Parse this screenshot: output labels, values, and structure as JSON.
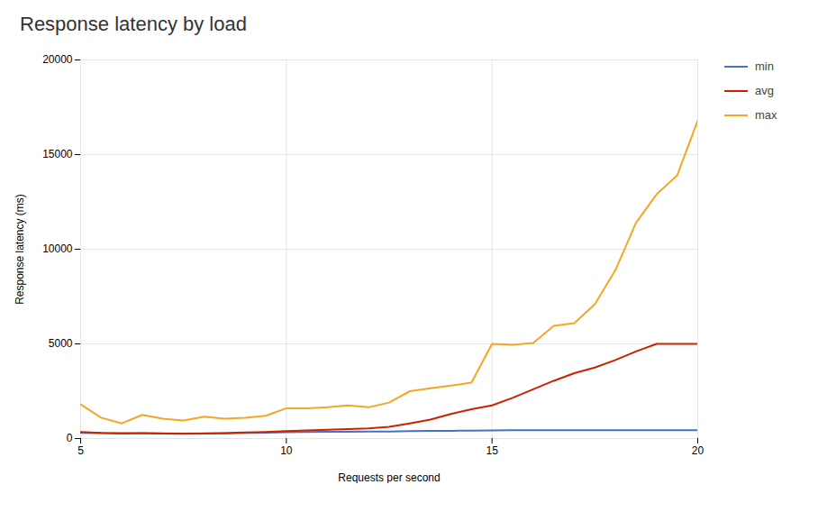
{
  "chart_data": {
    "type": "line",
    "title": "Response latency by load",
    "xlabel": "Requests per second",
    "ylabel": "Response latency (ms)",
    "x": [
      5,
      5.5,
      6,
      6.5,
      7,
      7.5,
      8,
      8.5,
      9,
      9.5,
      10,
      10.5,
      11,
      11.5,
      12,
      12.5,
      13,
      13.5,
      14,
      14.5,
      15,
      15.5,
      16,
      16.5,
      17,
      17.5,
      18,
      18.5,
      19,
      19.5,
      20
    ],
    "series": [
      {
        "name": "min",
        "color": "#4472c4",
        "values": [
          300,
          280,
          260,
          270,
          260,
          250,
          260,
          270,
          300,
          310,
          330,
          350,
          360,
          360,
          370,
          375,
          390,
          400,
          410,
          420,
          430,
          435,
          440,
          440,
          445,
          445,
          445,
          445,
          445,
          445,
          445
        ]
      },
      {
        "name": "avg",
        "color": "#cc2200",
        "values": [
          350,
          300,
          280,
          290,
          275,
          265,
          275,
          290,
          320,
          350,
          390,
          430,
          470,
          500,
          530,
          620,
          800,
          1000,
          1300,
          1550,
          1750,
          2150,
          2600,
          3050,
          3450,
          3750,
          4150,
          4600,
          5000,
          5000,
          5000
        ]
      },
      {
        "name": "max",
        "color": "#f5a623",
        "values": [
          1800,
          1100,
          800,
          1250,
          1050,
          950,
          1150,
          1050,
          1100,
          1200,
          1600,
          1600,
          1650,
          1750,
          1650,
          1900,
          2500,
          2650,
          2800,
          2950,
          5000,
          4950,
          5050,
          5950,
          6100,
          7100,
          8900,
          11400,
          12900,
          13900,
          16800
        ]
      }
    ],
    "xlim": [
      5,
      20
    ],
    "ylim": [
      0,
      20000
    ],
    "xticks": [
      5,
      10,
      15,
      20
    ],
    "yticks": [
      0,
      5000,
      10000,
      15000,
      20000
    ],
    "grid": true,
    "legend": "right"
  }
}
